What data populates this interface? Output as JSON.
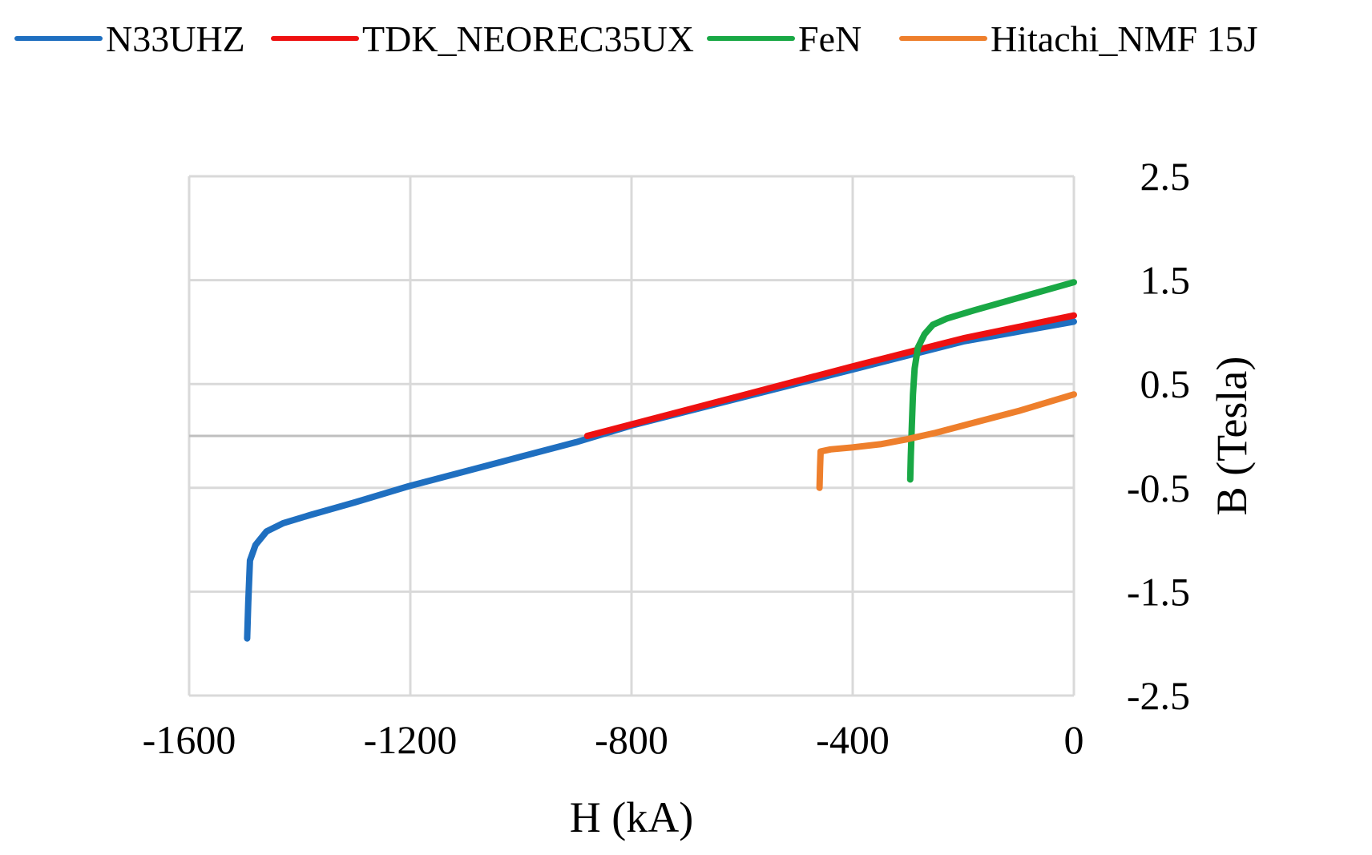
{
  "chart_data": {
    "type": "line",
    "title": "",
    "xlabel": "H (kA)",
    "ylabel": "B (Tesla)",
    "xlim": [
      -1600,
      0
    ],
    "ylim": [
      -2.5,
      2.5
    ],
    "x_ticks": [
      -1600,
      -1200,
      -800,
      -400,
      0
    ],
    "y_ticks": [
      2.5,
      1.5,
      0.5,
      -0.5,
      -1.5,
      -2.5
    ],
    "x_tick_labels": [
      "-1600",
      "-1200",
      "-800",
      "-400",
      "0"
    ],
    "y_tick_labels": [
      "2.5",
      "1.5",
      "0.5",
      "-0.5",
      "-1.5",
      "-2.5"
    ],
    "grid": true,
    "legend_position": "top",
    "series": [
      {
        "name": "N33UHZ",
        "color": "#1f6fc0",
        "width": 8,
        "points": [
          [
            -1495,
            -1.95
          ],
          [
            -1493,
            -1.6
          ],
          [
            -1490,
            -1.2
          ],
          [
            -1480,
            -1.05
          ],
          [
            -1460,
            -0.92
          ],
          [
            -1430,
            -0.84
          ],
          [
            -1380,
            -0.76
          ],
          [
            -1300,
            -0.64
          ],
          [
            -1200,
            -0.48
          ],
          [
            -1100,
            -0.34
          ],
          [
            -1000,
            -0.2
          ],
          [
            -900,
            -0.06
          ],
          [
            -800,
            0.1
          ],
          [
            -600,
            0.37
          ],
          [
            -400,
            0.64
          ],
          [
            -200,
            0.91
          ],
          [
            0,
            1.1
          ]
        ]
      },
      {
        "name": "TDK_NEOREC35UX",
        "color": "#ee1111",
        "width": 8,
        "points": [
          [
            -880,
            0.0
          ],
          [
            -600,
            0.39
          ],
          [
            -400,
            0.67
          ],
          [
            -200,
            0.94
          ],
          [
            0,
            1.16
          ]
        ]
      },
      {
        "name": "FeN",
        "color": "#19a845",
        "width": 8,
        "points": [
          [
            -296,
            -0.42
          ],
          [
            -295,
            -0.2
          ],
          [
            -293,
            0.1
          ],
          [
            -291,
            0.4
          ],
          [
            -288,
            0.65
          ],
          [
            -282,
            0.85
          ],
          [
            -270,
            0.98
          ],
          [
            -255,
            1.07
          ],
          [
            -230,
            1.13
          ],
          [
            -180,
            1.21
          ],
          [
            -100,
            1.33
          ],
          [
            0,
            1.48
          ]
        ]
      },
      {
        "name": "Hitachi_NMF 15J",
        "color": "#ee7f2c",
        "width": 8,
        "points": [
          [
            -460,
            -0.5
          ],
          [
            -459,
            -0.3
          ],
          [
            -458,
            -0.15
          ],
          [
            -440,
            -0.13
          ],
          [
            -400,
            -0.11
          ],
          [
            -350,
            -0.08
          ],
          [
            -300,
            -0.03
          ],
          [
            -250,
            0.03
          ],
          [
            -200,
            0.1
          ],
          [
            -100,
            0.24
          ],
          [
            0,
            0.4
          ]
        ]
      }
    ]
  }
}
